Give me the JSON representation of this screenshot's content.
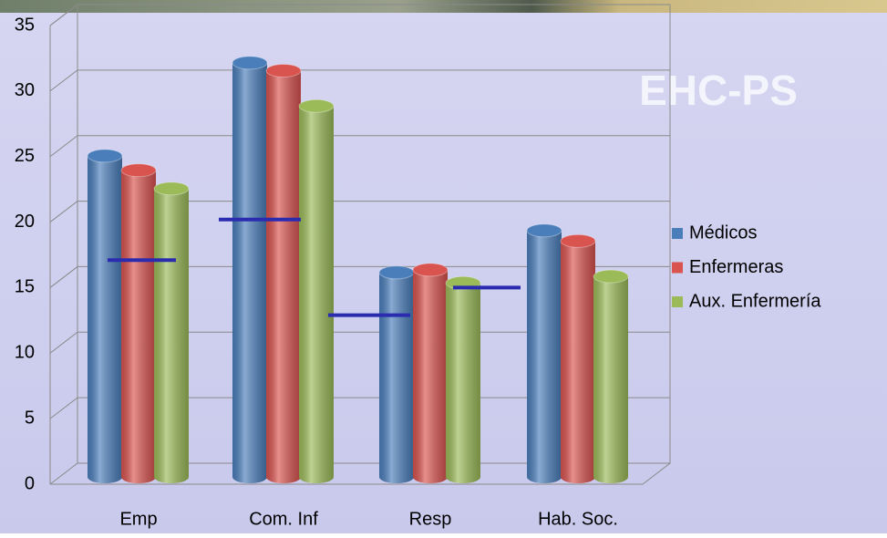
{
  "chart_data": {
    "type": "bar3d",
    "annotation": "EHC-PS",
    "categories": [
      "Emp",
      "Com. Inf",
      "Resp",
      "Hab. Soc."
    ],
    "series": [
      {
        "name": "Médicos",
        "color": "#4a7ebb",
        "values": [
          24.5,
          31.6,
          15.6,
          18.8
        ]
      },
      {
        "name": "Enfermeras",
        "color": "#d9534f",
        "values": [
          23.4,
          31.0,
          15.8,
          18.0
        ]
      },
      {
        "name": "Aux. Enfermería",
        "color": "#9bbb59",
        "values": [
          22.0,
          28.3,
          14.8,
          15.3
        ]
      }
    ],
    "reference_lines": {
      "color": "#2b2bb0",
      "values": [
        17.1,
        20.2,
        12.9,
        15.0
      ]
    },
    "ylim": [
      0,
      35
    ],
    "yticks": [
      0,
      5,
      10,
      15,
      20,
      25,
      30,
      35
    ],
    "grid": true,
    "legend": "right"
  }
}
